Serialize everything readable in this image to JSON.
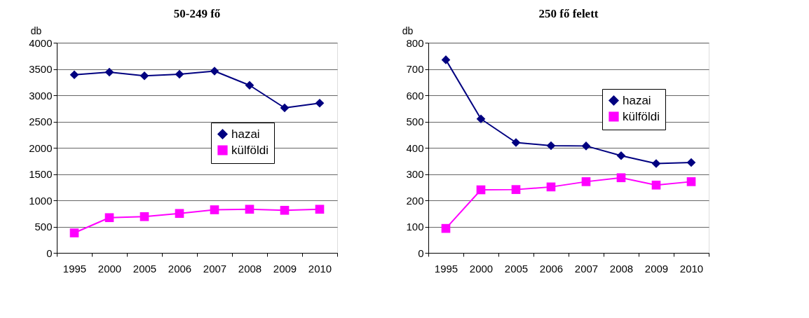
{
  "chart_data": [
    {
      "type": "line",
      "title": "50-249 fő",
      "ylabel": "db",
      "categories": [
        "1995",
        "2000",
        "2005",
        "2006",
        "2007",
        "2008",
        "2009",
        "2010"
      ],
      "ylim": [
        0,
        4000
      ],
      "yticks": [
        0,
        500,
        1000,
        1500,
        2000,
        2500,
        3000,
        3500,
        4000
      ],
      "grid": "y",
      "legend": "right",
      "line_style": "solid",
      "series": [
        {
          "name": "hazai",
          "color": "#000080",
          "marker": "diamond",
          "values": [
            3390,
            3440,
            3370,
            3400,
            3460,
            3190,
            2760,
            2850
          ]
        },
        {
          "name": "külföldi",
          "color": "#ff00ff",
          "marker": "square",
          "values": [
            380,
            670,
            690,
            750,
            820,
            830,
            810,
            830
          ]
        }
      ]
    },
    {
      "type": "line",
      "title": "250 fő felett",
      "ylabel": "db",
      "categories": [
        "1995",
        "2000",
        "2005",
        "2006",
        "2007",
        "2008",
        "2009",
        "2010"
      ],
      "ylim": [
        0,
        800
      ],
      "yticks": [
        0,
        100,
        200,
        300,
        400,
        500,
        600,
        700,
        800
      ],
      "grid": "y",
      "legend": "top right",
      "line_style": "solid",
      "series": [
        {
          "name": "hazai",
          "color": "#000080",
          "marker": "diamond",
          "values": [
            735,
            510,
            420,
            408,
            407,
            370,
            340,
            344
          ]
        },
        {
          "name": "külföldi",
          "color": "#ff00ff",
          "marker": "square",
          "values": [
            93,
            240,
            241,
            251,
            271,
            286,
            258,
            271
          ]
        }
      ]
    }
  ]
}
